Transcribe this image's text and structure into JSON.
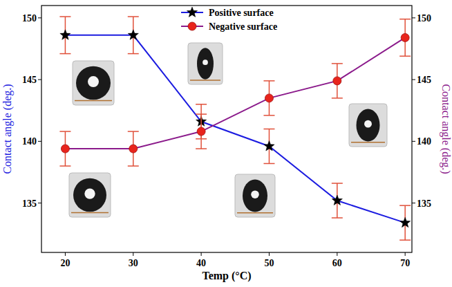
{
  "chart_data": {
    "type": "line",
    "x_label": "Temp (°C)",
    "y_label": "Contact angle (deg.)",
    "y2_label": "Contact angle (deg.)",
    "x": [
      20,
      30,
      40,
      50,
      60,
      70
    ],
    "xlim": [
      16.5,
      71
    ],
    "xticks": [
      20,
      30,
      40,
      50,
      60,
      70
    ],
    "ylim": [
      131,
      151
    ],
    "yticks": [
      135,
      140,
      145,
      150
    ],
    "y2lim": [
      131,
      151
    ],
    "y2ticks": [
      135,
      140,
      145,
      150
    ],
    "legend": "top",
    "series": [
      {
        "name": "Positive surface",
        "color": "#1c1ce0",
        "marker": "star",
        "axis": "y",
        "values": [
          148.6,
          148.6,
          141.6,
          139.6,
          135.2,
          133.4
        ],
        "errors": [
          1.5,
          1.5,
          1.4,
          1.4,
          1.4,
          1.4
        ]
      },
      {
        "name": "Negative surface",
        "color": "#8b1a8b",
        "marker": "circle",
        "axis": "y2",
        "values": [
          139.4,
          139.4,
          140.8,
          143.5,
          144.9,
          148.4
        ],
        "errors": [
          1.4,
          1.4,
          1.4,
          1.4,
          1.4,
          1.5
        ]
      }
    ]
  }
}
